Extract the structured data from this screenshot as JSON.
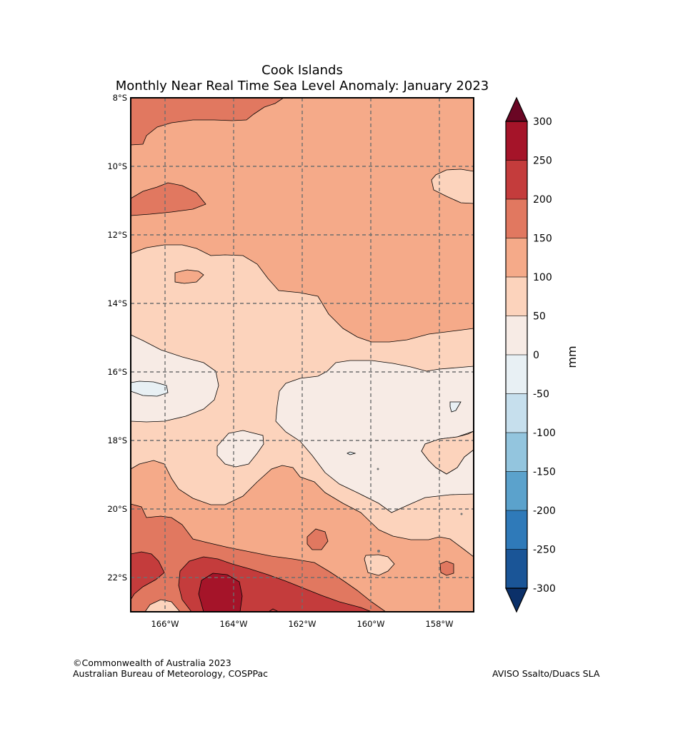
{
  "title": "Cook Islands",
  "subtitle": "Monthly Near Real Time Sea Level Anomaly: January 2023",
  "lat_labels": [
    "8°S",
    "10°S",
    "12°S",
    "14°S",
    "16°S",
    "18°S",
    "20°S",
    "22°S"
  ],
  "lon_labels": [
    "166°W",
    "164°W",
    "162°W",
    "160°W",
    "158°W"
  ],
  "colorbar": {
    "unit": "mm",
    "ticks": [
      "300",
      "250",
      "200",
      "150",
      "100",
      "50",
      "0",
      "-50",
      "-100",
      "-150",
      "-200",
      "-250",
      "-300"
    ],
    "colors": [
      "#a51429",
      "#c43c3c",
      "#e17860",
      "#f5aa89",
      "#fcd3bc",
      "#f7ebe5",
      "#e8f0f4",
      "#c6dfed",
      "#93c5de",
      "#5ba2cc",
      "#2f7ab9",
      "#1a5597"
    ],
    "over_color": "#6a0624",
    "under_color": "#0b3069"
  },
  "credits": {
    "line1": "©Commonwealth of Australia 2023",
    "line2": "Australian Bureau of Meteorology, COSPPac"
  },
  "source": "AVISO Ssalto/Duacs SLA"
}
